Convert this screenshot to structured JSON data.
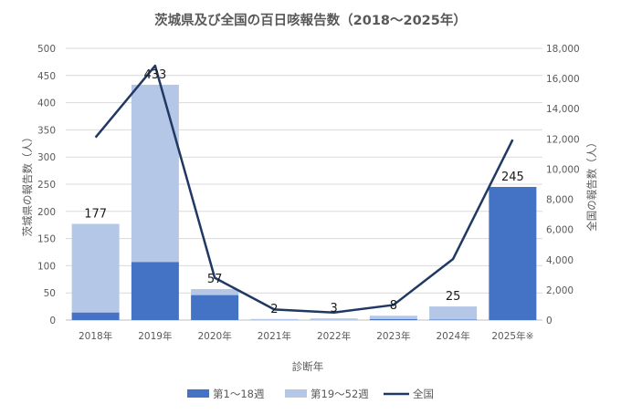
{
  "chart_data": {
    "type": "bar",
    "title": "茨城県及び全国の百日咳報告数（2018～2025年）",
    "xlabel": "診断年",
    "ylabel": "茨城県の報告数（人）",
    "y2label": "全国の報告数（人）",
    "categories": [
      "2018年",
      "2019年",
      "2020年",
      "2021年",
      "2022年",
      "2023年",
      "2024年",
      "2025年※"
    ],
    "ylim": [
      0,
      500
    ],
    "yticks": [
      0,
      50,
      100,
      150,
      200,
      250,
      300,
      350,
      400,
      450,
      500
    ],
    "y2lim": [
      0,
      18000
    ],
    "y2ticks": [
      "0",
      "2,000",
      "4,000",
      "6,000",
      "8,000",
      "10,000",
      "12,000",
      "14,000",
      "16,000",
      "18,000"
    ],
    "stacked": true,
    "series": [
      {
        "name": "第1～18週",
        "kind": "bar",
        "axis": "left",
        "color": "#4472c4",
        "values": [
          14,
          107,
          46,
          0,
          0,
          2,
          1,
          245
        ]
      },
      {
        "name": "第19～52週",
        "kind": "bar",
        "axis": "left",
        "color": "#b4c7e7",
        "values": [
          163,
          326,
          11,
          2,
          3,
          6,
          24,
          0
        ]
      },
      {
        "name": "全国",
        "kind": "line",
        "axis": "right",
        "color": "#203864",
        "values": [
          12100,
          16850,
          2800,
          700,
          500,
          1000,
          4050,
          11950
        ]
      }
    ],
    "data_labels": [
      "177",
      "433",
      "57",
      "2",
      "3",
      "8",
      "25",
      "245"
    ],
    "legend_position": "bottom",
    "grid": true
  }
}
